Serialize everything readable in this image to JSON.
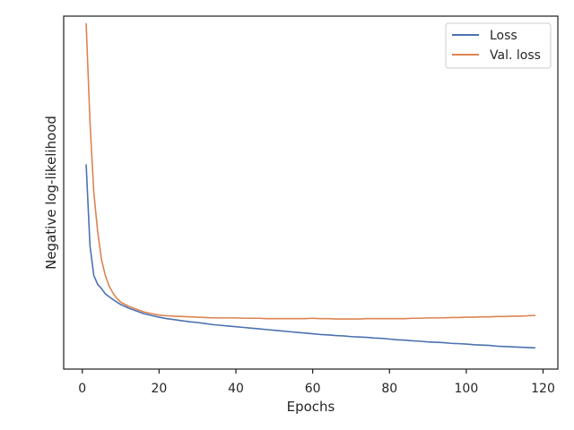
{
  "chart_data": {
    "type": "line",
    "xlabel": "Epochs",
    "ylabel": "Negative log-likelihood",
    "xlim": [
      -4.85,
      123.85
    ],
    "ylim": [
      0,
      1
    ],
    "xticks": [
      0,
      20,
      40,
      60,
      80,
      100,
      120
    ],
    "y_tick_labels_shown": false,
    "grid": false,
    "legend_position": "top-right",
    "x": [
      1,
      2,
      3,
      4,
      5,
      6,
      7,
      8,
      9,
      10,
      12,
      14,
      16,
      18,
      20,
      22,
      24,
      26,
      28,
      30,
      32,
      34,
      36,
      38,
      40,
      42,
      44,
      46,
      48,
      50,
      52,
      54,
      56,
      58,
      60,
      62,
      64,
      66,
      68,
      70,
      72,
      74,
      76,
      78,
      80,
      82,
      84,
      86,
      88,
      90,
      92,
      94,
      96,
      98,
      100,
      102,
      104,
      106,
      108,
      110,
      112,
      114,
      116,
      118
    ],
    "series": [
      {
        "name": "Loss",
        "color": "#4c72b0",
        "values": [
          0.58,
          0.35,
          0.265,
          0.24,
          0.228,
          0.213,
          0.205,
          0.197,
          0.19,
          0.183,
          0.173,
          0.165,
          0.157,
          0.152,
          0.147,
          0.143,
          0.14,
          0.137,
          0.134,
          0.132,
          0.129,
          0.126,
          0.124,
          0.122,
          0.12,
          0.118,
          0.116,
          0.114,
          0.112,
          0.11,
          0.108,
          0.106,
          0.104,
          0.102,
          0.1,
          0.098,
          0.097,
          0.095,
          0.094,
          0.092,
          0.091,
          0.09,
          0.088,
          0.087,
          0.085,
          0.083,
          0.082,
          0.08,
          0.079,
          0.077,
          0.076,
          0.075,
          0.073,
          0.072,
          0.071,
          0.069,
          0.068,
          0.067,
          0.065,
          0.064,
          0.063,
          0.062,
          0.061,
          0.06
        ]
      },
      {
        "name": "Val. loss",
        "color": "#dd8452",
        "values": [
          0.98,
          0.7,
          0.5,
          0.39,
          0.31,
          0.265,
          0.235,
          0.215,
          0.2,
          0.19,
          0.178,
          0.17,
          0.162,
          0.157,
          0.153,
          0.151,
          0.15,
          0.149,
          0.148,
          0.147,
          0.146,
          0.145,
          0.145,
          0.145,
          0.145,
          0.144,
          0.144,
          0.144,
          0.143,
          0.143,
          0.143,
          0.143,
          0.143,
          0.143,
          0.144,
          0.143,
          0.143,
          0.142,
          0.142,
          0.142,
          0.142,
          0.143,
          0.143,
          0.143,
          0.143,
          0.143,
          0.143,
          0.144,
          0.144,
          0.145,
          0.145,
          0.145,
          0.146,
          0.146,
          0.147,
          0.147,
          0.148,
          0.148,
          0.149,
          0.149,
          0.15,
          0.15,
          0.151,
          0.152
        ]
      }
    ]
  }
}
